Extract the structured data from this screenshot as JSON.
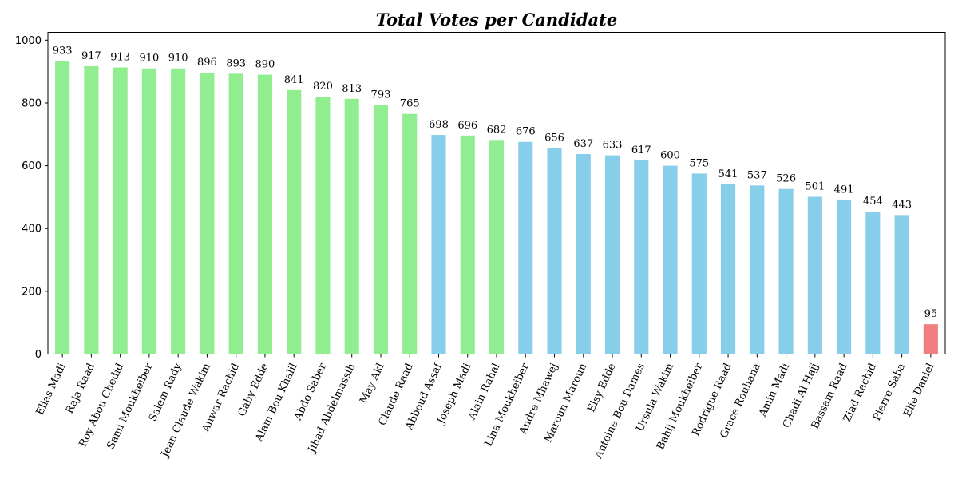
{
  "chart_data": {
    "type": "bar",
    "title": "Total Votes per Candidate",
    "xlabel": "",
    "ylabel": "",
    "ylim": [
      0,
      1025
    ],
    "yticks": [
      0,
      200,
      400,
      600,
      800,
      1000
    ],
    "grid": false,
    "legend": "none",
    "colors": {
      "green": "#90ee90",
      "blue": "#87ceeb",
      "red": "#f08080"
    },
    "categories": [
      "Elias Madi",
      "Raja Raad",
      "Roy Abou Chedid",
      "Sami Moukheiber",
      "Salem Rady",
      "Jean Claude Wakim",
      "Anwar Rachid",
      "Gaby Edde",
      "Alain Bou Khalil",
      "Abdo Saber",
      "Jihad Abdelmassih",
      "May Akl",
      "Claude Raad",
      "Abboud Assaf",
      "Joseph Madi",
      "Alain Rahal",
      "Lina Moukheiber",
      "Andre Mhawej",
      "Maroun Maroun",
      "Elsy Edde",
      "Antoine Bou Dames",
      "Ursula Wakim",
      "Bahij Moukheiber",
      "Rodrigue Raad",
      "Grace Rouhana",
      "Amin Madi",
      "Chadi Al Hajj",
      "Bassam Raad",
      "Ziad Rachid",
      "Pierre Saba",
      "Elie Daniel"
    ],
    "values": [
      933,
      917,
      913,
      910,
      910,
      896,
      893,
      890,
      841,
      820,
      813,
      793,
      765,
      698,
      696,
      682,
      676,
      656,
      637,
      633,
      617,
      600,
      575,
      541,
      537,
      526,
      501,
      491,
      454,
      443,
      95
    ],
    "bar_colors": [
      "green",
      "green",
      "green",
      "green",
      "green",
      "green",
      "green",
      "green",
      "green",
      "green",
      "green",
      "green",
      "green",
      "blue",
      "green",
      "green",
      "blue",
      "blue",
      "blue",
      "blue",
      "blue",
      "blue",
      "blue",
      "blue",
      "blue",
      "blue",
      "blue",
      "blue",
      "blue",
      "blue",
      "red"
    ]
  }
}
